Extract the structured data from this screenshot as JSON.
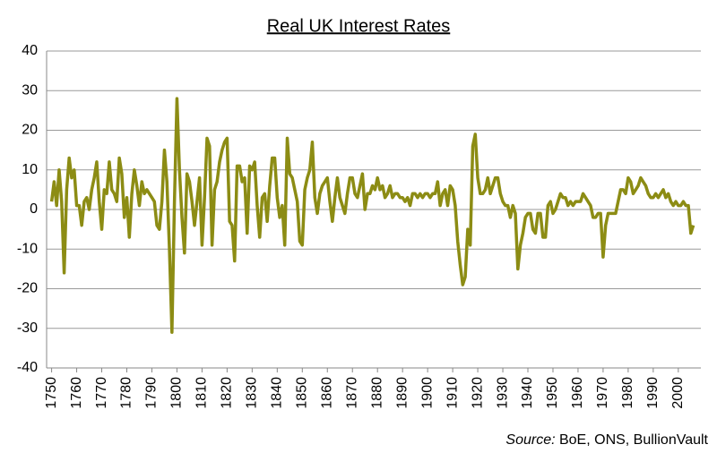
{
  "chart_data": {
    "type": "line",
    "title": "Real UK Interest Rates",
    "source_label": "Source:",
    "source_text": "BoE, ONS, BullionVault",
    "xlim": [
      1748,
      2009
    ],
    "xticks": [
      1750,
      1760,
      1770,
      1780,
      1790,
      1800,
      1810,
      1820,
      1830,
      1840,
      1850,
      1860,
      1870,
      1880,
      1890,
      1900,
      1910,
      1920,
      1930,
      1940,
      1950,
      1960,
      1970,
      1980,
      1990,
      2000
    ],
    "ylim": [
      -40,
      40
    ],
    "yticks": [
      -40,
      -30,
      -20,
      -10,
      0,
      10,
      20,
      30,
      40
    ],
    "grid": true,
    "x": [
      1750,
      1751,
      1752,
      1753,
      1754,
      1755,
      1756,
      1757,
      1758,
      1759,
      1760,
      1761,
      1762,
      1763,
      1764,
      1765,
      1766,
      1767,
      1768,
      1769,
      1770,
      1771,
      1772,
      1773,
      1774,
      1775,
      1776,
      1777,
      1778,
      1779,
      1780,
      1781,
      1782,
      1783,
      1784,
      1785,
      1786,
      1787,
      1788,
      1789,
      1790,
      1791,
      1792,
      1793,
      1794,
      1795,
      1796,
      1797,
      1798,
      1799,
      1800,
      1801,
      1802,
      1803,
      1804,
      1805,
      1806,
      1807,
      1808,
      1809,
      1810,
      1811,
      1812,
      1813,
      1814,
      1815,
      1816,
      1817,
      1818,
      1819,
      1820,
      1821,
      1822,
      1823,
      1824,
      1825,
      1826,
      1827,
      1828,
      1829,
      1830,
      1831,
      1832,
      1833,
      1834,
      1835,
      1836,
      1837,
      1838,
      1839,
      1840,
      1841,
      1842,
      1843,
      1844,
      1845,
      1846,
      1847,
      1848,
      1849,
      1850,
      1851,
      1852,
      1853,
      1854,
      1855,
      1856,
      1857,
      1858,
      1859,
      1860,
      1861,
      1862,
      1863,
      1864,
      1865,
      1866,
      1867,
      1868,
      1869,
      1870,
      1871,
      1872,
      1873,
      1874,
      1875,
      1876,
      1877,
      1878,
      1879,
      1880,
      1881,
      1882,
      1883,
      1884,
      1885,
      1886,
      1887,
      1888,
      1889,
      1890,
      1891,
      1892,
      1893,
      1894,
      1895,
      1896,
      1897,
      1898,
      1899,
      1900,
      1901,
      1902,
      1903,
      1904,
      1905,
      1906,
      1907,
      1908,
      1909,
      1910,
      1911,
      1912,
      1913,
      1914,
      1915,
      1916,
      1917,
      1918,
      1919,
      1920,
      1921,
      1922,
      1923,
      1924,
      1925,
      1926,
      1927,
      1928,
      1929,
      1930,
      1931,
      1932,
      1933,
      1934,
      1935,
      1936,
      1937,
      1938,
      1939,
      1940,
      1941,
      1942,
      1943,
      1944,
      1945,
      1946,
      1947,
      1948,
      1949,
      1950,
      1951,
      1952,
      1953,
      1954,
      1955,
      1956,
      1957,
      1958,
      1959,
      1960,
      1961,
      1962,
      1963,
      1964,
      1965,
      1966,
      1967,
      1968,
      1969,
      1970,
      1971,
      1972,
      1973,
      1974,
      1975,
      1976,
      1977,
      1978,
      1979,
      1980,
      1981,
      1982,
      1983,
      1984,
      1985,
      1986,
      1987,
      1988,
      1989,
      1990,
      1991,
      1992,
      1993,
      1994,
      1995,
      1996,
      1997,
      1998,
      1999,
      2000,
      2001,
      2002,
      2003,
      2004,
      2005,
      2006
    ],
    "series": [
      {
        "color": "#8c8c14",
        "values": [
          2,
          7,
          1,
          10,
          2,
          -16,
          5,
          13,
          8,
          10,
          1,
          1,
          -4,
          2,
          3,
          0,
          5,
          8,
          12,
          2,
          -5,
          5,
          4,
          12,
          5,
          4,
          2,
          13,
          9,
          -2,
          3,
          -7,
          4,
          10,
          6,
          1,
          7,
          4,
          5,
          4,
          3,
          2,
          -4,
          -5,
          2,
          15,
          7,
          -10,
          -31,
          2,
          28,
          10,
          -2,
          -11,
          9,
          7,
          2,
          -4,
          2,
          8,
          -9,
          3,
          18,
          16,
          -9,
          5,
          7,
          12,
          15,
          17,
          18,
          -3,
          -4,
          -13,
          11,
          11,
          7,
          8,
          -6,
          11,
          10,
          12,
          1,
          -7,
          3,
          4,
          -3,
          6,
          13,
          13,
          3,
          -2,
          1,
          -9,
          18,
          9,
          8,
          5,
          2,
          -8,
          -9,
          5,
          8,
          10,
          17,
          3,
          -1,
          4,
          6,
          7,
          8,
          2,
          -3,
          3,
          8,
          3,
          1,
          -1,
          4,
          8,
          8,
          4,
          3,
          6,
          9,
          0,
          4,
          4,
          6,
          5,
          8,
          5,
          6,
          3,
          4,
          6,
          3,
          4,
          4,
          3,
          3,
          2,
          3,
          1,
          4,
          4,
          3,
          4,
          3,
          4,
          4,
          3,
          4,
          4,
          7,
          1,
          4,
          5,
          1,
          6,
          5,
          1,
          -8,
          -14,
          -19,
          -17,
          -5,
          -9,
          16,
          19,
          8,
          4,
          4,
          5,
          8,
          4,
          6,
          8,
          8,
          4,
          2,
          1,
          1,
          -2,
          1,
          -1,
          -15,
          -9,
          -6,
          -2,
          -1,
          -1,
          -5,
          -6,
          -1,
          -1,
          -7,
          -7,
          1,
          2,
          -1,
          0,
          2,
          4,
          3,
          3,
          1,
          2,
          1,
          2,
          2,
          2,
          4,
          3,
          2,
          1,
          -2,
          -2,
          -1,
          -1,
          -12,
          -4,
          -1,
          -1,
          -1,
          -1,
          2,
          5,
          5,
          4,
          8,
          7,
          4,
          5,
          6,
          8,
          7,
          6,
          4,
          3,
          3,
          4,
          3,
          4,
          5,
          3,
          4,
          2,
          1,
          2,
          1,
          1,
          2,
          1,
          1,
          -6,
          -4
        ]
      }
    ]
  }
}
